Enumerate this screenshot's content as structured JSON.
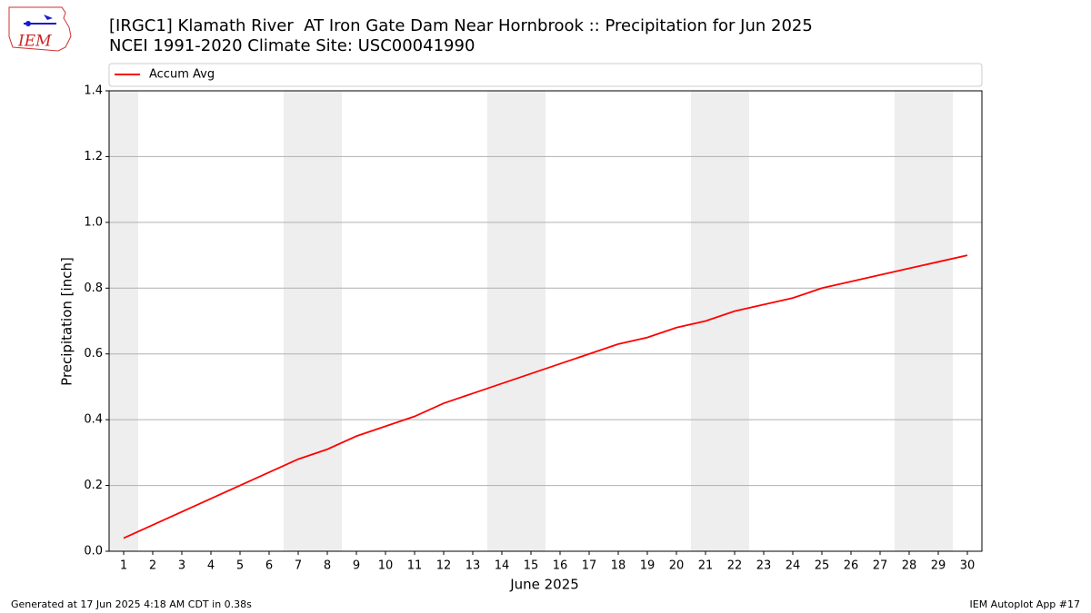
{
  "chart_data": {
    "type": "line",
    "title": "[IRGC1] Klamath River  AT Iron Gate Dam Near Hornbrook :: Precipitation for Jun 2025",
    "subtitle": "NCEI 1991-2020 Climate Site: USC00041990",
    "logo_text": "IEM",
    "x_label": "June 2025",
    "y_label": "Precipitation [inch]",
    "x": [
      1,
      2,
      3,
      4,
      5,
      6,
      7,
      8,
      9,
      10,
      11,
      12,
      13,
      14,
      15,
      16,
      17,
      18,
      19,
      20,
      21,
      22,
      23,
      24,
      25,
      26,
      27,
      28,
      29,
      30
    ],
    "series": [
      {
        "name": "Accum Avg",
        "color": "#ff0000",
        "values": [
          0.04,
          0.08,
          0.12,
          0.16,
          0.2,
          0.24,
          0.28,
          0.31,
          0.35,
          0.38,
          0.41,
          0.45,
          0.48,
          0.51,
          0.54,
          0.57,
          0.6,
          0.63,
          0.65,
          0.68,
          0.7,
          0.73,
          0.75,
          0.77,
          0.8,
          0.82,
          0.84,
          0.86,
          0.88,
          0.9
        ]
      }
    ],
    "shaded_ranges": [
      [
        0.5,
        1.5
      ],
      [
        6.5,
        8.5
      ],
      [
        13.5,
        15.5
      ],
      [
        20.5,
        22.5
      ],
      [
        27.5,
        29.5
      ]
    ],
    "shade_color": "#eeeeee",
    "xlim": [
      0.5,
      30.5
    ],
    "xticks": [
      1,
      2,
      3,
      4,
      5,
      6,
      7,
      8,
      9,
      10,
      11,
      12,
      13,
      14,
      15,
      16,
      17,
      18,
      19,
      20,
      21,
      22,
      23,
      24,
      25,
      26,
      27,
      28,
      29,
      30
    ],
    "ylim": [
      0,
      1.4
    ],
    "yticks": [
      {
        "value": 0,
        "label": "0.0"
      },
      {
        "value": 0.2,
        "label": "0.2"
      },
      {
        "value": 0.4,
        "label": "0.4"
      },
      {
        "value": 0.6,
        "label": "0.6"
      },
      {
        "value": 0.8,
        "label": "0.8"
      },
      {
        "value": 1.0,
        "label": "1.0"
      },
      {
        "value": 1.2,
        "label": "1.2"
      },
      {
        "value": 1.4,
        "label": "1.4"
      }
    ],
    "grid": true,
    "legend": "top",
    "footer_left": "Generated at 17 Jun 2025 4:18 AM CDT in 0.38s",
    "footer_right": "IEM Autoplot App #17"
  }
}
